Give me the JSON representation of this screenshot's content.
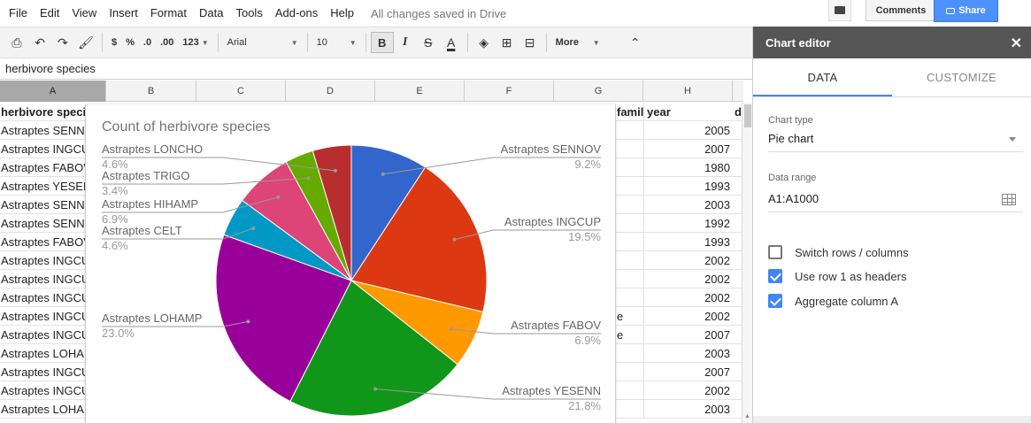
{
  "menu": {
    "items": [
      "File",
      "Edit",
      "View",
      "Insert",
      "Format",
      "Data",
      "Tools",
      "Add-ons",
      "Help"
    ],
    "save_status": "All changes saved in Drive"
  },
  "top_buttons": {
    "comments_label": "Comments",
    "share_label": "Share"
  },
  "toolbar": {
    "currency": "$",
    "percent": "%",
    "decrease_decimal": ".0",
    "increase_decimal": ".00",
    "more_formats": "123",
    "font": "Arial",
    "font_size": "10",
    "bold": "B",
    "italic": "I",
    "strike": "S",
    "text_color": "A",
    "more": "More",
    "collapse": "⌃"
  },
  "formula_bar": {
    "value": "herbivore species"
  },
  "columns": [
    "A",
    "B",
    "C",
    "D",
    "E",
    "F",
    "G",
    "H"
  ],
  "sheet": {
    "header": {
      "a": "herbivore speci",
      "f": "famil",
      "h": "year",
      "i": "d"
    },
    "rows": [
      {
        "a": "Astraptes SENN",
        "f": "",
        "h": "2005"
      },
      {
        "a": "Astraptes INGCU",
        "f": "",
        "h": "2007"
      },
      {
        "a": "Astraptes FABOV",
        "f": "",
        "h": "1980"
      },
      {
        "a": "Astraptes YESEN",
        "f": "",
        "h": "1993"
      },
      {
        "a": "Astraptes SENN",
        "f": "",
        "h": "2003"
      },
      {
        "a": "Astraptes SENN",
        "f": "",
        "h": "1992"
      },
      {
        "a": "Astraptes FABOV",
        "f": "",
        "h": "1993"
      },
      {
        "a": "Astraptes INGCU",
        "f": "",
        "h": "2002"
      },
      {
        "a": "Astraptes INGCU",
        "f": "",
        "h": "2002"
      },
      {
        "a": "Astraptes INGCU",
        "f": "",
        "h": "2002"
      },
      {
        "a": "Astraptes INGCU",
        "f": "e",
        "h": "2002"
      },
      {
        "a": "Astraptes INGCU",
        "f": "e",
        "h": "2007"
      },
      {
        "a": "Astraptes LOHAI",
        "f": "",
        "h": "2003"
      },
      {
        "a": "Astraptes INGCU",
        "f": "",
        "h": "2007"
      },
      {
        "a": "Astraptes INGCU",
        "f": "",
        "h": "2002"
      },
      {
        "a": "Astraptes LOHAI",
        "f": "",
        "h": "2003"
      }
    ]
  },
  "chart_data": {
    "type": "pie",
    "title": "Count of herbivore species",
    "start_angle_deg": 0,
    "slices": [
      {
        "label": "Astraptes SENNOV",
        "value": 9.2,
        "pct": "9.2%",
        "color": "#3366cc"
      },
      {
        "label": "Astraptes INGCUP",
        "value": 19.5,
        "pct": "19.5%",
        "color": "#dc3912"
      },
      {
        "label": "Astraptes FABOV",
        "value": 6.9,
        "pct": "6.9%",
        "color": "#ff9900"
      },
      {
        "label": "Astraptes YESENN",
        "value": 21.8,
        "pct": "21.8%",
        "color": "#109618"
      },
      {
        "label": "Astraptes LOHAMP",
        "value": 23.0,
        "pct": "23.0%",
        "color": "#990099"
      },
      {
        "label": "Astraptes CELT",
        "value": 4.6,
        "pct": "4.6%",
        "color": "#0099c6"
      },
      {
        "label": "Astraptes HIHAMP",
        "value": 6.9,
        "pct": "6.9%",
        "color": "#dd4477"
      },
      {
        "label": "Astraptes TRIGO",
        "value": 3.4,
        "pct": "3.4%",
        "color": "#66aa00"
      },
      {
        "label": "Astraptes LONCHO",
        "value": 4.6,
        "pct": "4.6%",
        "color": "#b82e2e"
      }
    ]
  },
  "editor": {
    "title": "Chart editor",
    "tabs": [
      "DATA",
      "CUSTOMIZE"
    ],
    "chart_type_label": "Chart type",
    "chart_type_value": "Pie chart",
    "data_range_label": "Data range",
    "data_range_value": "A1:A1000",
    "options": [
      {
        "label": "Switch rows / columns",
        "checked": false
      },
      {
        "label": "Use row 1 as headers",
        "checked": true
      },
      {
        "label": "Aggregate column A",
        "checked": true
      }
    ]
  }
}
